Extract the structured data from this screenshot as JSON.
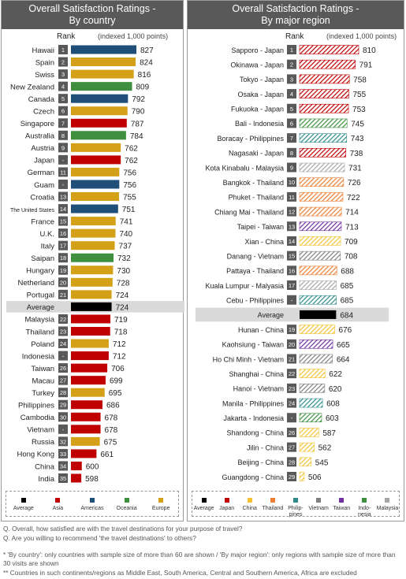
{
  "left_panel": {
    "title": "Overall Satisfaction Ratings -",
    "subtitle": "By country",
    "rank_header": "Rank",
    "unit_note": "(indexed 1,000 points)"
  },
  "right_panel": {
    "title": "Overall Satisfaction Ratings -",
    "subtitle": "By major region",
    "rank_header": "Rank",
    "unit_note": "(indexed 1,000 points)"
  },
  "colors": {
    "Asia": "#c00000",
    "Americas": "#1f4e79",
    "Oceania": "#3e8f3e",
    "Europe": "#d4a017",
    "Average": "#000000",
    "Japan": "#c00000",
    "China": "#f2c232",
    "Thailand": "#ed7d31",
    "Philippines": "#2e8b8b",
    "Vietnam": "#7f7f7f",
    "Taiwan": "#7030a0",
    "Indonesia": "#3e8f3e",
    "Malaysia": "#a6a6a6",
    "rank_box": "#595959",
    "average_band": "#d9d9d9"
  },
  "chart_data": [
    {
      "type": "bar",
      "orientation": "horizontal",
      "title": "Overall Satisfaction Ratings - By country",
      "unit": "(indexed 1,000 points)",
      "categories": [
        "Hawaii",
        "Spain",
        "Swiss",
        "New Zealand",
        "Canada",
        "Czech",
        "Singapore",
        "Australia",
        "Austria",
        "Japan",
        "German",
        "Guam",
        "Croatia",
        "The United States",
        "France",
        "U.K.",
        "Italy",
        "Saipan",
        "Hungary",
        "Netherland",
        "Portugal",
        "Average",
        "Malaysia",
        "Thailand",
        "Poland",
        "Indonesia",
        "Taiwan",
        "Macau",
        "Turkey",
        "Philippines",
        "Cambodia",
        "Vietnam",
        "Russia",
        "Hong Kong",
        "China",
        "India"
      ],
      "ranks": [
        "1",
        "2",
        "3",
        "4",
        "5",
        "6",
        "7",
        "8",
        "9",
        "-",
        "11",
        "-",
        "13",
        "14",
        "15",
        "16",
        "17",
        "18",
        "19",
        "20",
        "21",
        "",
        "22",
        "23",
        "24",
        "-",
        "26",
        "27",
        "28",
        "29",
        "30",
        "-",
        "32",
        "33",
        "34",
        "35"
      ],
      "values": [
        827,
        824,
        816,
        809,
        792,
        790,
        787,
        784,
        762,
        762,
        756,
        756,
        755,
        751,
        741,
        740,
        737,
        732,
        730,
        728,
        724,
        724,
        719,
        718,
        712,
        712,
        706,
        699,
        695,
        686,
        678,
        678,
        675,
        661,
        600,
        598
      ],
      "groups": [
        "Americas",
        "Europe",
        "Europe",
        "Oceania",
        "Americas",
        "Europe",
        "Asia",
        "Oceania",
        "Europe",
        "Asia",
        "Europe",
        "Americas",
        "Europe",
        "Americas",
        "Europe",
        "Europe",
        "Europe",
        "Oceania",
        "Europe",
        "Europe",
        "Europe",
        "Average",
        "Asia",
        "Asia",
        "Europe",
        "Asia",
        "Asia",
        "Asia",
        "Europe",
        "Asia",
        "Asia",
        "Asia",
        "Europe",
        "Asia",
        "Asia",
        "Asia"
      ],
      "legend": [
        {
          "name": "Average",
          "color_key": "Average"
        },
        {
          "name": "Asia",
          "color_key": "Asia"
        },
        {
          "name": "Americas",
          "color_key": "Americas"
        },
        {
          "name": "Oceania",
          "color_key": "Oceania"
        },
        {
          "name": "Europe",
          "color_key": "Europe"
        }
      ]
    },
    {
      "type": "bar",
      "orientation": "horizontal",
      "title": "Overall Satisfaction Ratings - By major region",
      "unit": "(indexed 1,000 points)",
      "categories": [
        "Sapporo - Japan",
        "Okinawa - Japan",
        "Tokyo - Japan",
        "Osaka - Japan",
        "Fukuoka - Japan",
        "Bali - Indonesia",
        "Boracay - Philippines",
        "Nagasaki - Japan",
        "Kota Kinabalu - Malaysia",
        "Bangkok - Thailand",
        "Phuket - Thailand",
        "Chiang Mai - Thailand",
        "Taipei - Taiwan",
        "Xian - China",
        "Danang - Vietnam",
        "Pattaya - Thailand",
        "Kuala Lumpur - Malyasia",
        "Cebu - Philippines",
        "Average",
        "Hunan - China",
        "Kaohsiung - Taiwan",
        "Ho Chi Minh - Vietnam",
        "Shanghai - China",
        "Hanoi - Vietnam",
        "Manila - Philippines",
        "Jakarta - Indonesia",
        "Shandong - China",
        "Jilin - China",
        "Beijing - China",
        "Guangdong - China"
      ],
      "ranks": [
        "1",
        "2",
        "3",
        "4",
        "5",
        "6",
        "7",
        "8",
        "9",
        "10",
        "11",
        "12",
        "13",
        "14",
        "15",
        "16",
        "17",
        "-",
        "",
        "19",
        "20",
        "21",
        "22",
        "23",
        "24",
        "-",
        "26",
        "27",
        "28",
        "29"
      ],
      "values": [
        810,
        791,
        758,
        755,
        753,
        745,
        743,
        738,
        731,
        726,
        722,
        714,
        713,
        709,
        708,
        688,
        685,
        685,
        684,
        676,
        665,
        664,
        622,
        620,
        608,
        603,
        587,
        562,
        545,
        506
      ],
      "groups": [
        "Japan",
        "Japan",
        "Japan",
        "Japan",
        "Japan",
        "Indonesia",
        "Philippines",
        "Japan",
        "Malaysia",
        "Thailand",
        "Thailand",
        "Thailand",
        "Taiwan",
        "China",
        "Vietnam",
        "Thailand",
        "Malaysia",
        "Philippines",
        "Average",
        "China",
        "Taiwan",
        "Vietnam",
        "China",
        "Vietnam",
        "Philippines",
        "Indonesia",
        "China",
        "China",
        "China",
        "China"
      ],
      "legend": [
        {
          "name": "Average",
          "color_key": "Average"
        },
        {
          "name": "Japan",
          "color_key": "Japan"
        },
        {
          "name": "China",
          "color_key": "China"
        },
        {
          "name": "Thailand",
          "color_key": "Thailand"
        },
        {
          "name": "Philip- pines",
          "color_key": "Philippines"
        },
        {
          "name": "Vietnam",
          "color_key": "Vietnam"
        },
        {
          "name": "Taiwan",
          "color_key": "Taiwan"
        },
        {
          "name": "Indo- nesia",
          "color_key": "Indonesia"
        },
        {
          "name": "Malaysia",
          "color_key": "Malaysia"
        }
      ]
    }
  ],
  "footnotes": {
    "q1": "Q. Overall, how satisfied are with the travel destinations for your purpose of travel?",
    "q2": "Q. Are you willing to recommend 'the travel destinations' to others?",
    "note1": "* 'By country': only countries with sample size of more than 60 are shown / 'By major region': only regions with sample size of more than 30 visits are shown",
    "note2": "** Countries in such continents/regions as Middle East, South America, Central and Southern America, Africa are excluded"
  }
}
